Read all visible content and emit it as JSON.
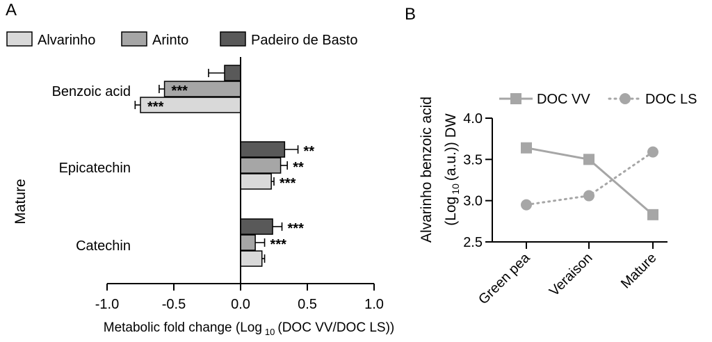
{
  "chart_data": [
    {
      "panel": "A",
      "type": "bar",
      "orientation": "horizontal",
      "group_label": "Mature",
      "categories": [
        "Benzoic acid",
        "Epicatechin",
        "Catechin"
      ],
      "series": [
        {
          "name": "Alvarinho",
          "color": "#d9d9d9",
          "values": [
            -0.75,
            0.23,
            0.16
          ],
          "errors": [
            0.04,
            0.02,
            0.02
          ],
          "significance": [
            "***",
            "***",
            ""
          ]
        },
        {
          "name": "Arinto",
          "color": "#a6a6a6",
          "values": [
            -0.57,
            0.3,
            0.11
          ],
          "errors": [
            0.04,
            0.05,
            0.07
          ],
          "significance": [
            "***",
            "**",
            "***"
          ]
        },
        {
          "name": "Padeiro de Basto",
          "color": "#595959",
          "values": [
            -0.12,
            0.33,
            0.24
          ],
          "errors": [
            0.12,
            0.1,
            0.07
          ],
          "significance": [
            "",
            "**",
            "***"
          ]
        }
      ],
      "xlim": [
        -1.0,
        1.0
      ],
      "xticks": [
        -1.0,
        -0.5,
        0.0,
        0.5,
        1.0
      ],
      "tick_labels": [
        "-1.0",
        "-0.5",
        "0.0",
        "0.5",
        "1.0"
      ],
      "xlabel_main": "Metabolic fold change (Log",
      "xlabel_sub": "10",
      "xlabel_end": "(DOC VV/DOC LS))",
      "ylabel": "Mature"
    },
    {
      "panel": "B",
      "type": "line",
      "categories": [
        "Green pea",
        "Veraison",
        "Mature"
      ],
      "series": [
        {
          "name": "DOC VV",
          "marker": "square",
          "line": "solid",
          "color": "#a6a6a6",
          "values": [
            3.64,
            3.5,
            2.83
          ]
        },
        {
          "name": "DOC LS",
          "marker": "circle",
          "line": "dotted",
          "color": "#a6a6a6",
          "values": [
            2.95,
            3.06,
            3.59
          ]
        }
      ],
      "ylim": [
        2.5,
        4.0
      ],
      "yticks": [
        2.5,
        3.0,
        3.5,
        4.0
      ],
      "tick_labels": [
        "2.5",
        "3.0",
        "3.5",
        "4.0"
      ],
      "ylabel_line1": "Alvarinho benzoic acid",
      "ylabel_line2_main": "(Log",
      "ylabel_line2_sub": "10",
      "ylabel_line2_end": "(a.u.)) DW"
    }
  ]
}
